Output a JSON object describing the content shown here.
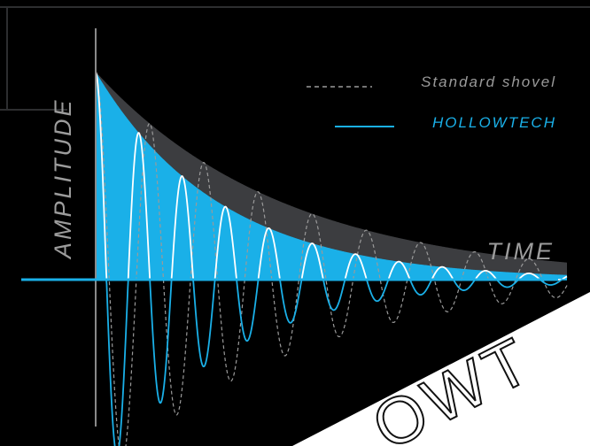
{
  "chart_data": {
    "type": "line",
    "title": "",
    "xlabel": "TIME",
    "ylabel": "AMPLITUDE",
    "legend_placement": "top-right",
    "grid": false,
    "series": [
      {
        "name": "Standard shovel",
        "style": "dashed",
        "color": "#9a9a9a",
        "envelope_color": "#3c3d40",
        "decay_rate": 2.5,
        "oscillation_period": 0.115
      },
      {
        "name": "HOLLOWTECH",
        "style": "solid",
        "color": "#1ab0e8",
        "envelope_color": "#1ab0e8",
        "decay_rate": 3.8,
        "oscillation_period": 0.092
      }
    ],
    "xlim": [
      0,
      1
    ],
    "ylim": [
      -1,
      1
    ]
  },
  "watermark": "OWT",
  "colors": {
    "background": "#000000",
    "accent": "#1ab0e8",
    "frame": "#2d2e30",
    "axis_vertical": "#8a8a8a"
  }
}
